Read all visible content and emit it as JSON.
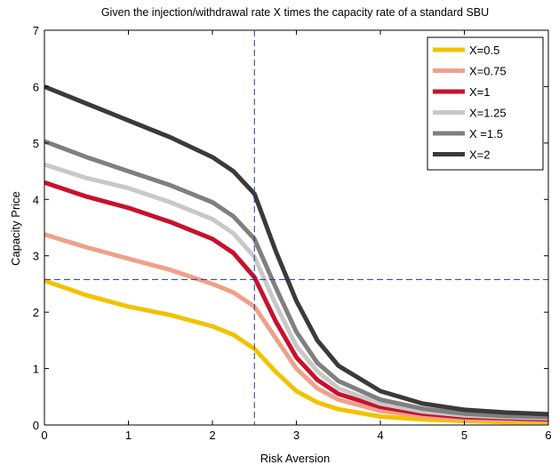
{
  "chart_data": {
    "type": "line",
    "title": "Given the injection/withdrawal rate X times the capacity rate of a standard SBU",
    "xlabel": "Risk Aversion",
    "ylabel": "Capacity Price",
    "xlim": [
      0,
      6
    ],
    "ylim": [
      0,
      7
    ],
    "xticks": [
      "0",
      "1",
      "2",
      "3",
      "4",
      "5",
      "6"
    ],
    "yticks": [
      "0",
      "1",
      "2",
      "3",
      "4",
      "5",
      "6",
      "7"
    ],
    "grid": false,
    "legend_position": "top-right",
    "reference_lines": {
      "vertical_x": 2.5,
      "horizontal_y": 2.58,
      "style": "dashed",
      "color": "#1f3a93"
    },
    "x": [
      0,
      0.5,
      1,
      1.5,
      2,
      2.25,
      2.5,
      2.75,
      3,
      3.25,
      3.5,
      4,
      4.5,
      5,
      5.5,
      6
    ],
    "series": [
      {
        "name": "X=0.5",
        "color": "#f2c200",
        "values": [
          2.56,
          2.3,
          2.1,
          1.95,
          1.75,
          1.6,
          1.35,
          0.95,
          0.6,
          0.4,
          0.28,
          0.15,
          0.1,
          0.07,
          0.05,
          0.05
        ]
      },
      {
        "name": "X=0.75",
        "color": "#f0a08a",
        "values": [
          3.38,
          3.15,
          2.95,
          2.75,
          2.5,
          2.35,
          2.1,
          1.55,
          1.0,
          0.65,
          0.45,
          0.25,
          0.16,
          0.11,
          0.09,
          0.08
        ]
      },
      {
        "name": "X=1",
        "color": "#c8102e",
        "values": [
          4.3,
          4.05,
          3.85,
          3.6,
          3.3,
          3.05,
          2.62,
          1.85,
          1.2,
          0.8,
          0.55,
          0.32,
          0.2,
          0.14,
          0.12,
          0.1
        ]
      },
      {
        "name": "X=1.25",
        "color": "#c8c8c8",
        "values": [
          4.62,
          4.38,
          4.2,
          3.95,
          3.65,
          3.4,
          2.98,
          2.15,
          1.4,
          0.95,
          0.65,
          0.38,
          0.24,
          0.17,
          0.14,
          0.12
        ]
      },
      {
        "name": "X =1.5",
        "color": "#7f7f7f",
        "values": [
          5.03,
          4.75,
          4.5,
          4.25,
          3.95,
          3.7,
          3.3,
          2.45,
          1.65,
          1.1,
          0.78,
          0.45,
          0.29,
          0.2,
          0.16,
          0.14
        ]
      },
      {
        "name": "X=2",
        "color": "#3a3a3a",
        "values": [
          6.0,
          5.7,
          5.4,
          5.1,
          4.75,
          4.5,
          4.1,
          3.1,
          2.2,
          1.5,
          1.05,
          0.6,
          0.38,
          0.27,
          0.22,
          0.19
        ]
      }
    ]
  }
}
